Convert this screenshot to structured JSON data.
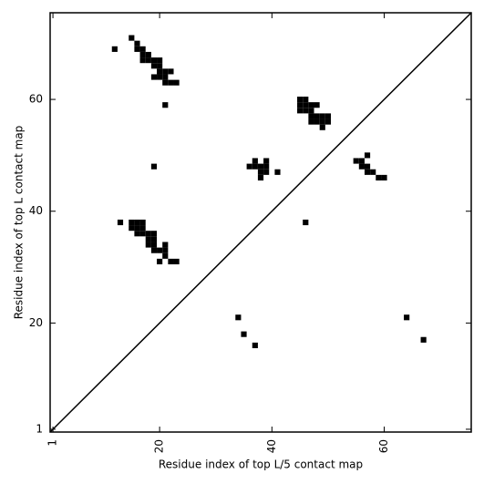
{
  "chart_data": {
    "type": "scatter",
    "marker": "square",
    "color": "#000000",
    "xlabel": "Residue index of top L/5 contact map",
    "ylabel": "Residue index of top L contact map",
    "xlim": [
      0.5,
      75.5
    ],
    "ylim": [
      0.5,
      75.5
    ],
    "xticks": [
      1,
      20,
      40,
      60
    ],
    "yticks": [
      1,
      20,
      40,
      60
    ],
    "x": [
      12,
      15,
      16,
      16,
      17,
      17,
      18,
      17,
      18,
      19,
      20,
      19,
      20,
      20,
      21,
      22,
      19,
      20,
      21,
      21,
      22,
      23,
      21,
      19,
      45,
      46,
      45,
      46,
      47,
      48,
      45,
      46,
      47,
      47,
      48,
      49,
      50,
      47,
      48,
      49,
      50,
      49,
      37,
      39,
      36,
      37,
      38,
      39,
      38,
      39,
      38,
      41,
      57,
      55,
      56,
      56,
      57,
      57,
      58,
      59,
      60,
      13,
      15,
      16,
      17,
      15,
      16,
      17,
      16,
      17,
      18,
      19,
      18,
      19,
      18,
      19,
      21,
      19,
      20,
      21,
      21,
      20,
      22,
      23,
      46,
      34,
      35,
      37,
      64,
      67
    ],
    "y": [
      69,
      71,
      70,
      69,
      69,
      68,
      68,
      67,
      67,
      67,
      67,
      66,
      66,
      65,
      65,
      65,
      64,
      64,
      64,
      63,
      63,
      63,
      59,
      48,
      60,
      60,
      59,
      59,
      59,
      59,
      58,
      58,
      58,
      57,
      57,
      57,
      57,
      56,
      56,
      56,
      56,
      55,
      49,
      49,
      48,
      48,
      48,
      48,
      47,
      47,
      46,
      47,
      50,
      49,
      49,
      48,
      48,
      47,
      47,
      46,
      46,
      38,
      38,
      38,
      38,
      37,
      37,
      37,
      36,
      36,
      36,
      36,
      35,
      35,
      34,
      34,
      34,
      33,
      33,
      33,
      32,
      31,
      31,
      31,
      38,
      21,
      18,
      16,
      21,
      17
    ]
  }
}
